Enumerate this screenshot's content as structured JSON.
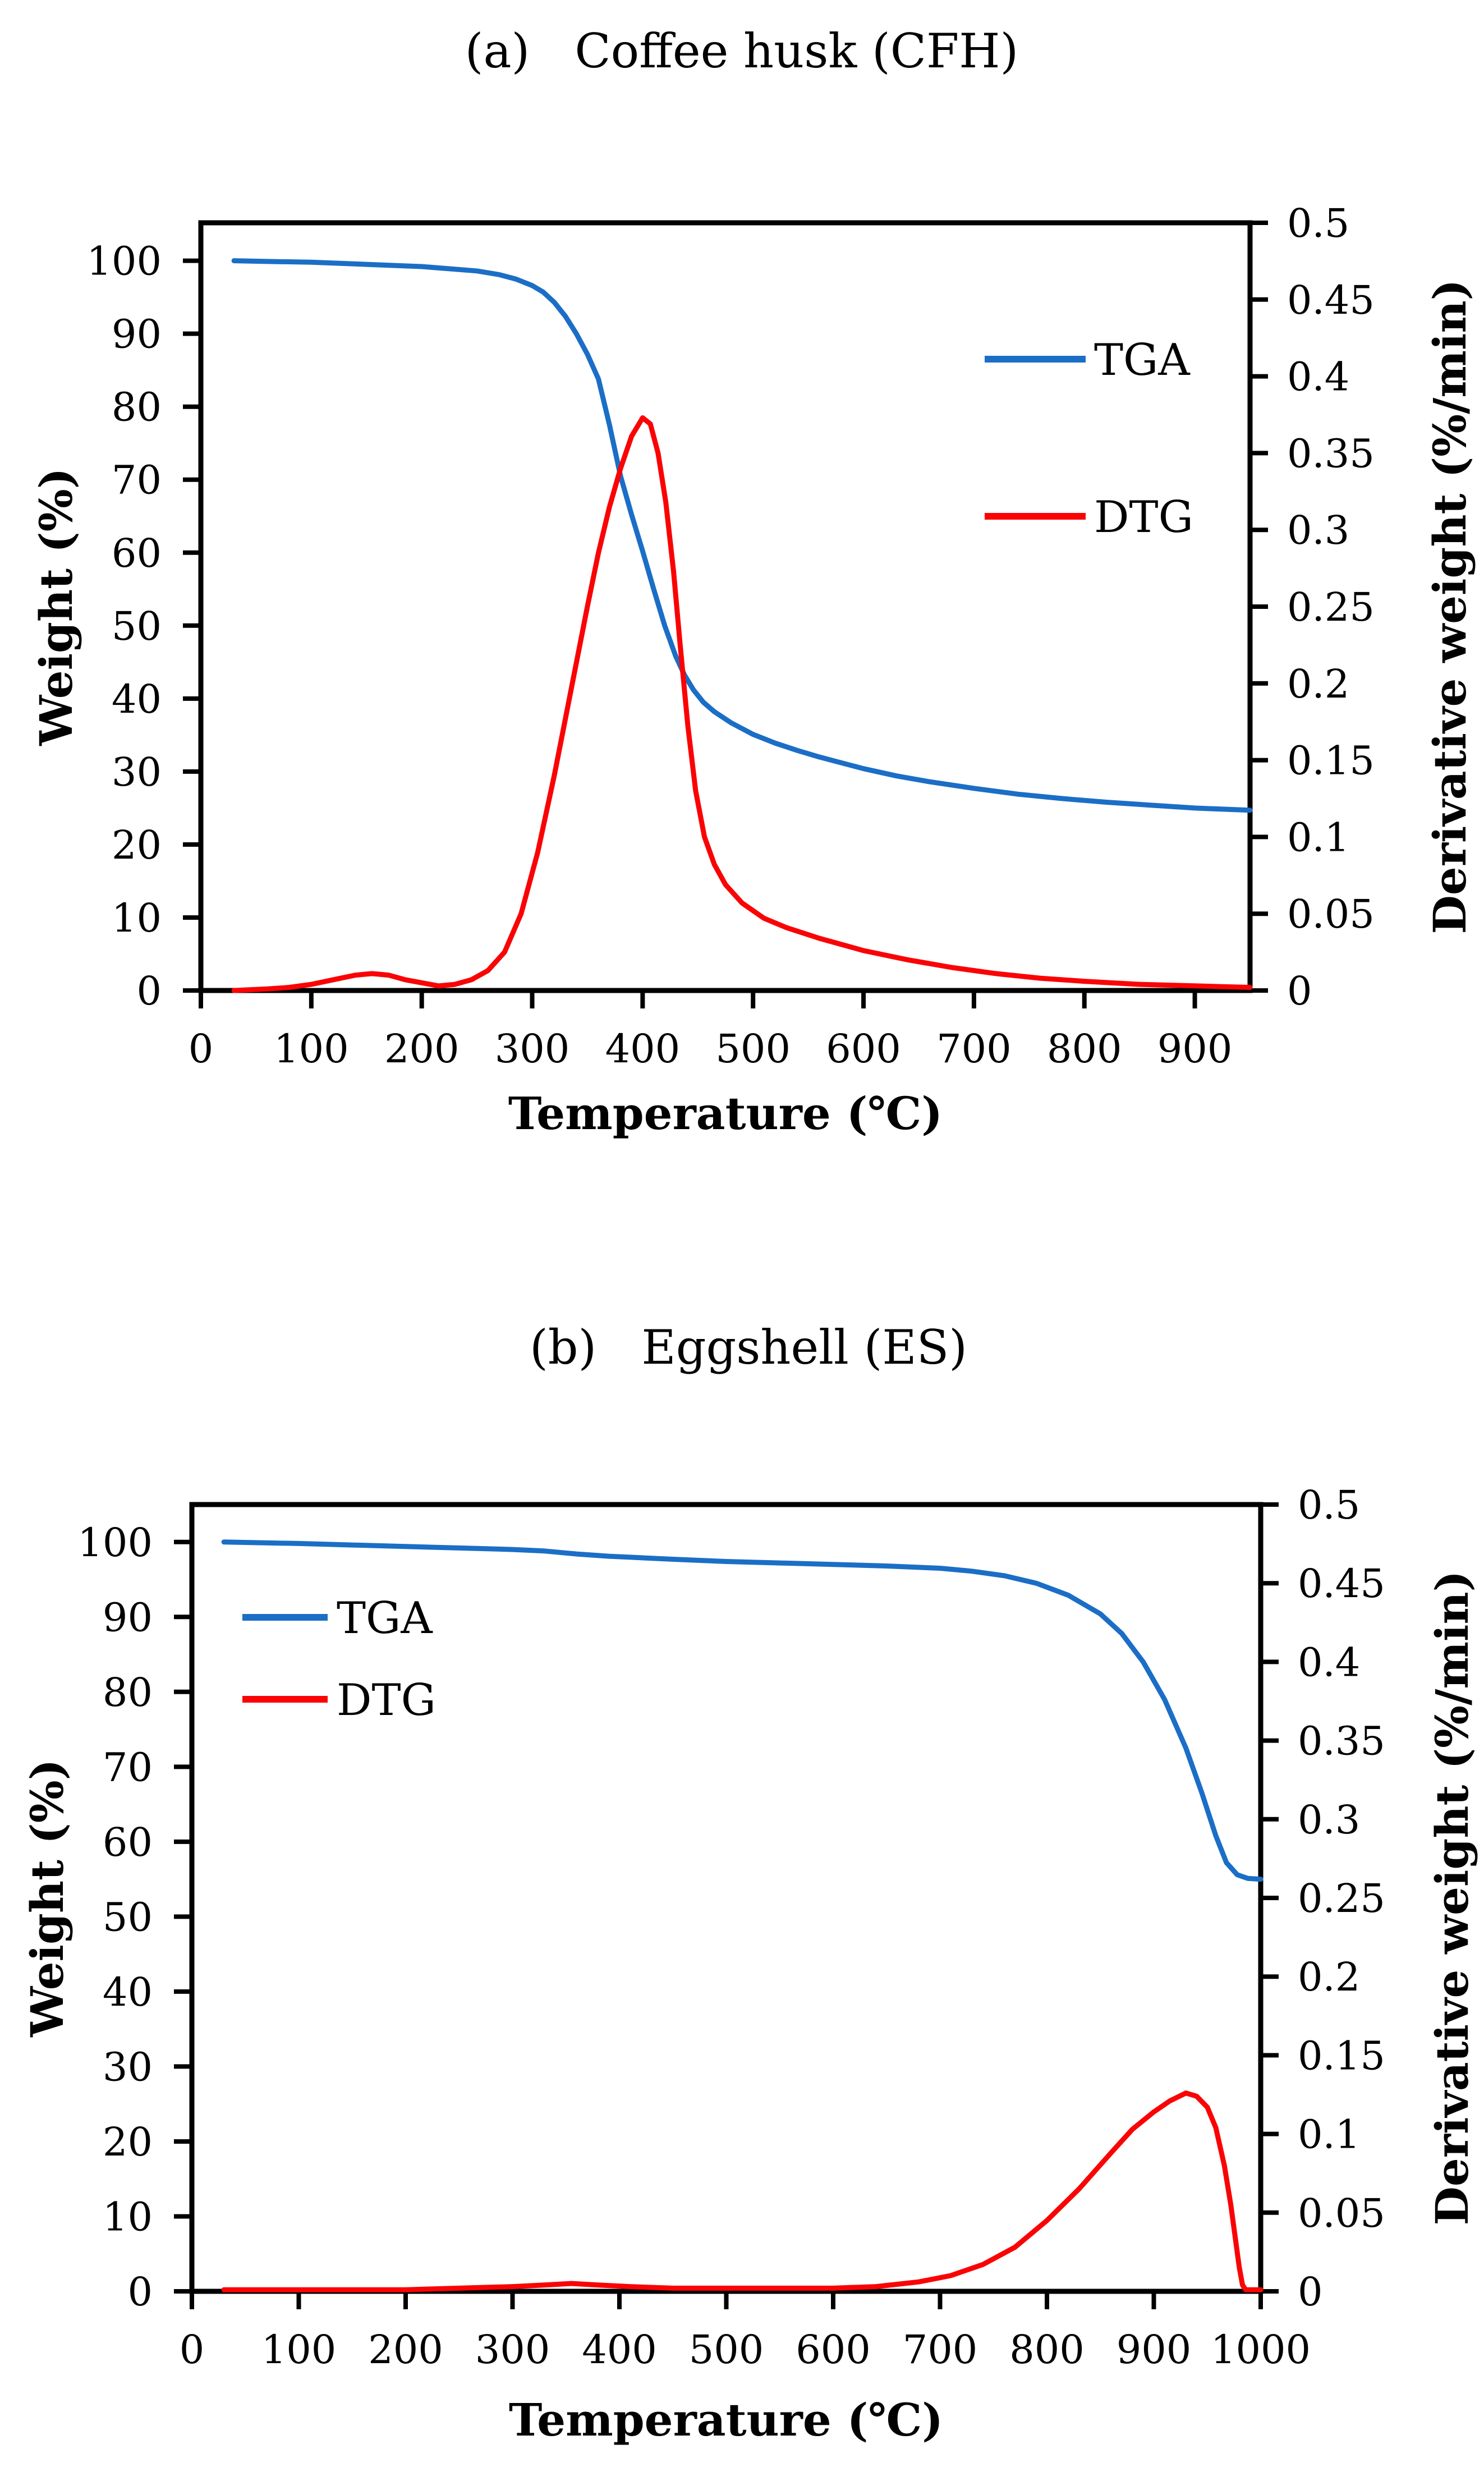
{
  "page": {
    "background": "#ffffff",
    "text_color": "#000000",
    "frame_color": "#000000"
  },
  "chart_data": [
    {
      "type": "line",
      "panel": "a",
      "title": "(a)   Coffee husk (CFH)",
      "xlabel": "Temperature (℃)",
      "ylabel_left": "Weight (%)",
      "ylabel_right": "Derivative weight (%/min)",
      "xlim": [
        0,
        950
      ],
      "ylim_left": [
        0,
        105.2
      ],
      "ylim_right": [
        0,
        0.5
      ],
      "x_ticks": [
        0,
        100,
        200,
        300,
        400,
        500,
        600,
        700,
        800,
        900
      ],
      "y_ticks_left": [
        0,
        10,
        20,
        30,
        40,
        50,
        60,
        70,
        80,
        90,
        100
      ],
      "y_ticks_right": [
        "0",
        "0.05",
        "0.1",
        "0.15",
        "0.2",
        "0.25",
        "0.3",
        "0.35",
        "0.4",
        "0.45",
        "0.5"
      ],
      "grid": false,
      "legend_position": "upper-right-inside",
      "series": [
        {
          "name": "TGA",
          "axis": "left",
          "color": "#1b6ec6",
          "points": [
            [
              30,
              100
            ],
            [
              60,
              99.9
            ],
            [
              100,
              99.8
            ],
            [
              150,
              99.5
            ],
            [
              200,
              99.2
            ],
            [
              250,
              98.6
            ],
            [
              270,
              98.1
            ],
            [
              285,
              97.5
            ],
            [
              300,
              96.6
            ],
            [
              310,
              95.7
            ],
            [
              320,
              94.3
            ],
            [
              330,
              92.4
            ],
            [
              340,
              90.0
            ],
            [
              350,
              87.2
            ],
            [
              360,
              83.8
            ],
            [
              370,
              77.5
            ],
            [
              380,
              70.5
            ],
            [
              390,
              65.2
            ],
            [
              400,
              60.2
            ],
            [
              410,
              55.0
            ],
            [
              420,
              50.0
            ],
            [
              430,
              45.8
            ],
            [
              438,
              43.2
            ],
            [
              446,
              41.2
            ],
            [
              455,
              39.5
            ],
            [
              465,
              38.2
            ],
            [
              480,
              36.7
            ],
            [
              500,
              35.1
            ],
            [
              520,
              33.9
            ],
            [
              540,
              32.9
            ],
            [
              560,
              32.0
            ],
            [
              580,
              31.2
            ],
            [
              600,
              30.4
            ],
            [
              630,
              29.4
            ],
            [
              660,
              28.6
            ],
            [
              700,
              27.7
            ],
            [
              740,
              26.9
            ],
            [
              780,
              26.3
            ],
            [
              820,
              25.8
            ],
            [
              860,
              25.4
            ],
            [
              900,
              25.0
            ],
            [
              950,
              24.7
            ]
          ]
        },
        {
          "name": "DTG",
          "axis": "right",
          "color": "#fa0305",
          "points": [
            [
              30,
              0.0
            ],
            [
              60,
              0.001
            ],
            [
              80,
              0.002
            ],
            [
              100,
              0.004
            ],
            [
              120,
              0.007
            ],
            [
              140,
              0.01
            ],
            [
              155,
              0.011
            ],
            [
              170,
              0.01
            ],
            [
              185,
              0.007
            ],
            [
              200,
              0.005
            ],
            [
              215,
              0.003
            ],
            [
              230,
              0.004
            ],
            [
              245,
              0.007
            ],
            [
              260,
              0.013
            ],
            [
              275,
              0.025
            ],
            [
              290,
              0.05
            ],
            [
              305,
              0.09
            ],
            [
              320,
              0.14
            ],
            [
              335,
              0.195
            ],
            [
              350,
              0.25
            ],
            [
              360,
              0.285
            ],
            [
              370,
              0.315
            ],
            [
              380,
              0.34
            ],
            [
              390,
              0.361
            ],
            [
              400,
              0.373
            ],
            [
              407,
              0.369
            ],
            [
              414,
              0.35
            ],
            [
              421,
              0.318
            ],
            [
              428,
              0.273
            ],
            [
              434,
              0.225
            ],
            [
              441,
              0.172
            ],
            [
              448,
              0.13
            ],
            [
              456,
              0.1
            ],
            [
              465,
              0.082
            ],
            [
              475,
              0.069
            ],
            [
              490,
              0.057
            ],
            [
              510,
              0.047
            ],
            [
              530,
              0.041
            ],
            [
              560,
              0.034
            ],
            [
              600,
              0.026
            ],
            [
              640,
              0.02
            ],
            [
              680,
              0.015
            ],
            [
              720,
              0.011
            ],
            [
              760,
              0.008
            ],
            [
              800,
              0.006
            ],
            [
              850,
              0.004
            ],
            [
              900,
              0.003
            ],
            [
              950,
              0.002
            ]
          ]
        }
      ]
    },
    {
      "type": "line",
      "panel": "b",
      "title": "(b)   Eggshell (ES)",
      "xlabel": "Temperature (℃)",
      "ylabel_left": "Weight (%)",
      "ylabel_right": "Derivative weight (%/min)",
      "xlim": [
        0,
        1000
      ],
      "ylim_left": [
        0,
        105
      ],
      "ylim_right": [
        0,
        0.5
      ],
      "x_ticks": [
        0,
        100,
        200,
        300,
        400,
        500,
        600,
        700,
        800,
        900,
        1000
      ],
      "y_ticks_left": [
        0,
        10,
        20,
        30,
        40,
        50,
        60,
        70,
        80,
        90,
        100
      ],
      "y_ticks_right": [
        "0",
        "0.05",
        "0.1",
        "0.15",
        "0.2",
        "0.25",
        "0.3",
        "0.35",
        "0.4",
        "0.45",
        "0.5"
      ],
      "grid": false,
      "legend_position": "upper-left-inside",
      "series": [
        {
          "name": "TGA",
          "axis": "left",
          "color": "#1b6ec6",
          "points": [
            [
              30,
              100
            ],
            [
              100,
              99.8
            ],
            [
              150,
              99.6
            ],
            [
              200,
              99.4
            ],
            [
              250,
              99.2
            ],
            [
              300,
              99.0
            ],
            [
              330,
              98.8
            ],
            [
              360,
              98.4
            ],
            [
              390,
              98.1
            ],
            [
              420,
              97.9
            ],
            [
              450,
              97.7
            ],
            [
              500,
              97.4
            ],
            [
              550,
              97.2
            ],
            [
              600,
              97.0
            ],
            [
              650,
              96.8
            ],
            [
              700,
              96.5
            ],
            [
              730,
              96.1
            ],
            [
              760,
              95.5
            ],
            [
              790,
              94.5
            ],
            [
              820,
              92.9
            ],
            [
              850,
              90.4
            ],
            [
              870,
              87.8
            ],
            [
              890,
              84.0
            ],
            [
              910,
              79.0
            ],
            [
              930,
              72.5
            ],
            [
              945,
              66.5
            ],
            [
              958,
              60.8
            ],
            [
              968,
              57.2
            ],
            [
              978,
              55.6
            ],
            [
              988,
              55.1
            ],
            [
              1000,
              55.0
            ]
          ]
        },
        {
          "name": "DTG",
          "axis": "right",
          "color": "#fa0305",
          "points": [
            [
              30,
              0.001
            ],
            [
              100,
              0.001
            ],
            [
              150,
              0.001
            ],
            [
              200,
              0.001
            ],
            [
              250,
              0.002
            ],
            [
              300,
              0.003
            ],
            [
              330,
              0.004
            ],
            [
              355,
              0.005
            ],
            [
              380,
              0.004
            ],
            [
              410,
              0.003
            ],
            [
              450,
              0.002
            ],
            [
              500,
              0.002
            ],
            [
              550,
              0.002
            ],
            [
              600,
              0.002
            ],
            [
              640,
              0.003
            ],
            [
              680,
              0.006
            ],
            [
              710,
              0.01
            ],
            [
              740,
              0.017
            ],
            [
              770,
              0.028
            ],
            [
              800,
              0.045
            ],
            [
              830,
              0.065
            ],
            [
              860,
              0.088
            ],
            [
              880,
              0.103
            ],
            [
              900,
              0.114
            ],
            [
              915,
              0.121
            ],
            [
              930,
              0.126
            ],
            [
              940,
              0.124
            ],
            [
              950,
              0.117
            ],
            [
              958,
              0.104
            ],
            [
              966,
              0.08
            ],
            [
              972,
              0.055
            ],
            [
              977,
              0.03
            ],
            [
              980,
              0.015
            ],
            [
              983,
              0.004
            ],
            [
              986,
              0.001
            ],
            [
              1000,
              0.001
            ]
          ]
        }
      ]
    }
  ]
}
